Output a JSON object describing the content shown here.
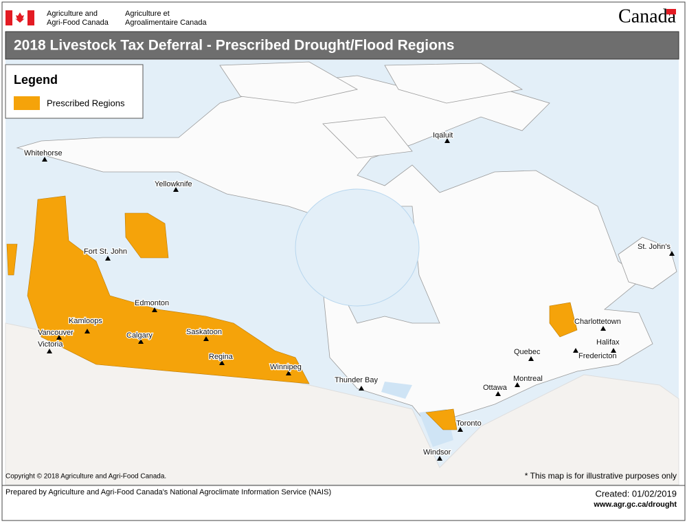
{
  "header": {
    "department_en": [
      "Agriculture and",
      "Agri-Food Canada"
    ],
    "department_fr": [
      "Agriculture et",
      "Agroalimentaire Canada"
    ],
    "wordmark": "Canada"
  },
  "title": "2018 Livestock Tax Deferral - Prescribed Drought/Flood Regions",
  "legend": {
    "title": "Legend",
    "items": [
      "Prescribed Regions"
    ]
  },
  "cities": [
    "Whitehorse",
    "Yellowknife",
    "Iqaluit",
    "Fort St. John",
    "St. John's",
    "Edmonton",
    "Kamloops",
    "Calgary",
    "Saskatoon",
    "Charlottetown",
    "Vancouver",
    "Victoria",
    "Regina",
    "Halifax",
    "Quebec",
    "Fredericton",
    "Winnipeg",
    "Thunder Bay",
    "Montreal",
    "Ottawa",
    "Toronto",
    "Windsor"
  ],
  "copyright": "Copyright © 2018 Agriculture and Agri-Food Canada.",
  "disclaimer": "* This map is for illustrative purposes only",
  "footer": {
    "prepared_by": "Prepared by Agriculture and Agri-Food Canada's National Agroclimate Information Service (NAIS)",
    "created": "Created: 01/02/2019",
    "url": "www.agr.gc.ca/drought"
  }
}
